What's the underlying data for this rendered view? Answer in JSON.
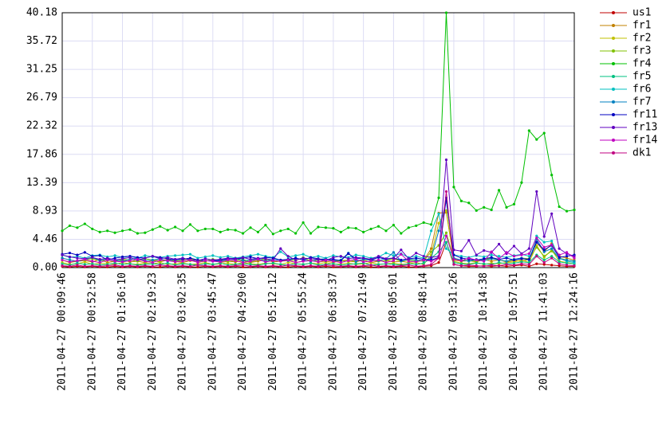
{
  "chart_data": {
    "type": "line",
    "categories": [
      "2011-04-27 00:09:46",
      null,
      null,
      null,
      "2011-04-27 00:52:58",
      null,
      null,
      null,
      "2011-04-27 01:36:10",
      null,
      null,
      null,
      "2011-04-27 02:19:23",
      null,
      null,
      null,
      "2011-04-27 03:02:35",
      null,
      null,
      null,
      "2011-04-27 03:45:47",
      null,
      null,
      null,
      "2011-04-27 04:29:00",
      null,
      null,
      null,
      "2011-04-27 05:12:12",
      null,
      null,
      null,
      "2011-04-27 05:55:24",
      null,
      null,
      null,
      "2011-04-27 06:38:37",
      null,
      null,
      null,
      "2011-04-27 07:21:49",
      null,
      null,
      null,
      "2011-04-27 08:05:01",
      null,
      null,
      null,
      "2011-04-27 08:48:14",
      null,
      null,
      null,
      "2011-04-27 09:31:26",
      null,
      null,
      null,
      "2011-04-27 10:14:38",
      null,
      null,
      null,
      "2011-04-27 10:57:51",
      null,
      null,
      null,
      "2011-04-27 11:41:03",
      null,
      null,
      null,
      "2011-04-27 12:24:16"
    ],
    "ylim": [
      0,
      40.18
    ],
    "yticks": [
      {
        "value": 0,
        "label": "0.00"
      },
      4.46,
      8.93,
      13.39,
      17.86,
      22.32,
      26.79,
      31.25,
      35.72,
      40.18
    ],
    "grid": true,
    "legend": "right",
    "series": [
      {
        "name": "us1",
        "color": "#c00000",
        "values": [
          0.2,
          0.1,
          0.2,
          0.1,
          0.2,
          0.1,
          0.1,
          0.2,
          0.1,
          0.2,
          0.1,
          0.2,
          0.1,
          0.1,
          0.2,
          0.1,
          0.2,
          0.1,
          0.1,
          0.2,
          0.1,
          0.2,
          0.1,
          0.2,
          0.1,
          0.1,
          0.2,
          0.1,
          0.2,
          0.1,
          0.1,
          0.2,
          0.1,
          0.2,
          0.1,
          0.2,
          0.1,
          0.1,
          0.2,
          0.1,
          0.2,
          0.1,
          0.1,
          0.2,
          0.1,
          0.2,
          0.1,
          0.1,
          0.2,
          0.3,
          0.8,
          4.0,
          0.5,
          0.3,
          0.2,
          0.2,
          0.3,
          0.2,
          0.3,
          0.2,
          0.3,
          0.4,
          0.2,
          0.6,
          0.5,
          0.4,
          0.3,
          0.2,
          0.2
        ]
      },
      {
        "name": "fr1",
        "color": "#c08000",
        "values": [
          1.2,
          0.8,
          1.0,
          1.1,
          0.9,
          1.3,
          0.8,
          1.0,
          1.2,
          0.9,
          1.0,
          0.8,
          1.1,
          0.9,
          1.2,
          1.0,
          0.8,
          1.1,
          0.9,
          1.0,
          1.2,
          0.8,
          1.0,
          0.9,
          1.1,
          0.8,
          1.0,
          1.2,
          0.9,
          1.0,
          1.1,
          0.8,
          1.0,
          1.2,
          0.9,
          1.0,
          0.8,
          1.1,
          1.0,
          0.9,
          1.2,
          0.8,
          1.0,
          1.1,
          0.9,
          1.0,
          0.8,
          1.0,
          1.1,
          3.0,
          8.6,
          8.7,
          1.2,
          1.0,
          1.1,
          0.9,
          1.3,
          1.0,
          1.2,
          0.9,
          1.1,
          1.0,
          1.3,
          4.0,
          2.5,
          3.8,
          1.8,
          1.5,
          1.2
        ]
      },
      {
        "name": "fr2",
        "color": "#c0c000",
        "values": [
          0.8,
          0.5,
          0.6,
          0.9,
          0.5,
          0.7,
          0.6,
          0.5,
          0.8,
          0.6,
          0.5,
          0.7,
          0.6,
          0.8,
          0.5,
          0.6,
          0.7,
          0.5,
          0.6,
          0.8,
          0.5,
          0.6,
          0.7,
          0.5,
          0.8,
          0.6,
          0.5,
          0.7,
          0.6,
          0.5,
          0.8,
          0.6,
          0.5,
          0.7,
          0.6,
          0.8,
          0.5,
          0.6,
          0.7,
          0.5,
          0.6,
          0.8,
          0.5,
          0.6,
          0.7,
          0.5,
          0.6,
          0.8,
          0.5,
          2.0,
          7.0,
          9.0,
          1.0,
          0.7,
          0.6,
          0.8,
          0.5,
          0.7,
          0.6,
          0.8,
          0.9,
          1.2,
          0.8,
          3.5,
          1.6,
          2.8,
          1.0,
          0.8,
          0.6
        ]
      },
      {
        "name": "fr3",
        "color": "#80c000",
        "values": [
          1.5,
          1.2,
          1.0,
          1.3,
          1.4,
          1.1,
          1.2,
          0.9,
          1.3,
          1.2,
          1.0,
          1.4,
          1.2,
          1.1,
          1.3,
          1.0,
          1.2,
          1.4,
          1.1,
          1.0,
          1.3,
          1.2,
          1.0,
          1.1,
          1.3,
          0.9,
          1.2,
          1.4,
          1.1,
          1.0,
          1.3,
          1.1,
          1.6,
          1.0,
          1.2,
          1.3,
          1.0,
          1.1,
          1.2,
          1.0,
          1.3,
          1.2,
          1.0,
          1.1,
          1.4,
          1.0,
          1.2,
          1.1,
          1.0,
          2.5,
          3.5,
          5.5,
          1.4,
          1.2,
          1.1,
          1.0,
          1.3,
          1.5,
          1.2,
          1.0,
          1.3,
          1.5,
          1.4,
          3.2,
          1.8,
          2.6,
          1.5,
          1.2,
          1.0
        ]
      },
      {
        "name": "fr4",
        "color": "#00c000",
        "values": [
          5.8,
          6.6,
          6.3,
          6.9,
          6.1,
          5.6,
          5.8,
          5.5,
          5.8,
          6.0,
          5.4,
          5.5,
          6.0,
          6.5,
          5.9,
          6.4,
          5.8,
          6.8,
          5.8,
          6.1,
          6.1,
          5.6,
          6.0,
          5.9,
          5.4,
          6.3,
          5.6,
          6.7,
          5.3,
          5.8,
          6.1,
          5.4,
          7.1,
          5.4,
          6.4,
          6.3,
          6.2,
          5.6,
          6.3,
          6.2,
          5.6,
          6.1,
          6.5,
          5.8,
          6.7,
          5.4,
          6.3,
          6.6,
          7.1,
          6.8,
          11.0,
          40.18,
          12.7,
          10.5,
          10.2,
          9.0,
          9.5,
          9.1,
          12.2,
          9.5,
          10.0,
          13.4,
          21.6,
          20.2,
          21.2,
          14.6,
          9.6,
          8.9,
          9.1
        ]
      },
      {
        "name": "fr5",
        "color": "#00c080",
        "values": [
          0.6,
          0.4,
          0.7,
          0.5,
          0.6,
          0.4,
          0.5,
          0.7,
          0.5,
          0.6,
          0.4,
          0.5,
          0.6,
          0.5,
          0.7,
          0.4,
          0.6,
          0.5,
          0.4,
          0.6,
          0.5,
          0.7,
          0.4,
          0.5,
          0.6,
          0.5,
          0.4,
          0.6,
          0.7,
          0.5,
          0.4,
          0.6,
          0.5,
          0.7,
          0.4,
          0.5,
          0.6,
          0.4,
          0.5,
          0.6,
          0.7,
          0.4,
          0.5,
          0.6,
          0.5,
          0.4,
          0.6,
          0.5,
          0.7,
          1.5,
          2.5,
          4.0,
          0.8,
          0.6,
          0.5,
          0.7,
          0.6,
          0.5,
          0.8,
          0.6,
          0.7,
          0.9,
          0.8,
          2.0,
          1.2,
          1.8,
          0.9,
          0.7,
          0.6
        ]
      },
      {
        "name": "fr6",
        "color": "#00c0c0",
        "values": [
          2.0,
          1.6,
          1.8,
          1.5,
          1.9,
          2.0,
          1.7,
          1.9,
          1.6,
          1.8,
          1.5,
          1.9,
          1.7,
          1.6,
          1.8,
          1.9,
          2.0,
          2.1,
          1.5,
          1.7,
          1.9,
          1.6,
          1.8,
          1.5,
          1.7,
          1.9,
          2.1,
          1.8,
          1.6,
          2.5,
          1.7,
          1.9,
          2.1,
          1.6,
          1.8,
          1.5,
          1.9,
          1.7,
          1.6,
          2.0,
          1.8,
          1.5,
          1.7,
          2.3,
          1.9,
          2.2,
          1.6,
          1.8,
          1.5,
          5.8,
          8.5,
          3.0,
          2.0,
          1.8,
          1.6,
          1.9,
          1.7,
          2.0,
          1.8,
          1.6,
          1.9,
          2.1,
          1.8,
          5.0,
          4.0,
          4.2,
          1.5,
          1.0,
          0.8
        ]
      },
      {
        "name": "fr7",
        "color": "#0080c0",
        "values": [
          1.5,
          1.2,
          1.0,
          1.3,
          1.6,
          1.1,
          1.4,
          1.2,
          1.0,
          1.3,
          1.5,
          1.1,
          1.2,
          1.4,
          1.0,
          1.3,
          1.5,
          1.2,
          1.1,
          1.4,
          1.2,
          1.0,
          1.3,
          1.5,
          1.1,
          1.2,
          1.4,
          1.0,
          1.3,
          1.2,
          1.1,
          1.5,
          1.2,
          1.0,
          1.3,
          1.4,
          1.1,
          1.2,
          2.3,
          1.0,
          1.3,
          1.2,
          1.1,
          1.4,
          2.4,
          1.0,
          1.3,
          1.2,
          1.1,
          1.5,
          5.8,
          10.5,
          1.5,
          1.2,
          1.0,
          1.3,
          1.1,
          1.4,
          1.2,
          1.0,
          1.3,
          1.5,
          1.2,
          4.5,
          2.5,
          3.0,
          1.4,
          1.2,
          1.0
        ]
      },
      {
        "name": "fr11",
        "color": "#0000c0",
        "values": [
          2.1,
          2.3,
          2.0,
          2.4,
          1.8,
          1.9,
          1.2,
          1.5,
          1.7,
          1.8,
          1.6,
          1.5,
          1.8,
          1.6,
          1.4,
          1.2,
          1.3,
          1.5,
          1.2,
          1.1,
          1.0,
          1.2,
          1.4,
          1.3,
          1.5,
          1.7,
          1.4,
          1.6,
          1.5,
          1.2,
          1.3,
          1.5,
          1.2,
          1.6,
          1.4,
          1.2,
          1.3,
          1.1,
          2.2,
          1.4,
          1.5,
          1.2,
          1.6,
          1.3,
          1.5,
          1.2,
          1.4,
          1.5,
          1.3,
          1.2,
          1.6,
          11.0,
          2.0,
          1.5,
          1.3,
          1.2,
          1.4,
          1.6,
          1.3,
          1.5,
          1.2,
          1.4,
          1.3,
          4.0,
          2.8,
          3.5,
          1.6,
          1.8,
          2.0
        ]
      },
      {
        "name": "fr13",
        "color": "#6000c0",
        "values": [
          2.0,
          1.7,
          1.5,
          1.4,
          1.6,
          1.3,
          1.5,
          1.2,
          1.4,
          1.6,
          1.2,
          1.5,
          1.8,
          1.4,
          1.6,
          1.3,
          1.5,
          1.2,
          1.1,
          1.4,
          1.2,
          1.3,
          1.5,
          1.4,
          1.6,
          1.3,
          1.5,
          1.4,
          1.2,
          3.0,
          1.8,
          1.2,
          1.5,
          1.4,
          1.3,
          1.1,
          1.6,
          1.8,
          1.4,
          1.6,
          1.5,
          1.3,
          1.8,
          1.4,
          1.5,
          2.8,
          1.4,
          2.3,
          1.8,
          1.6,
          1.8,
          17.0,
          2.8,
          2.6,
          4.3,
          2.0,
          2.7,
          2.4,
          3.7,
          2.2,
          3.4,
          2.2,
          3.0,
          12.0,
          4.9,
          8.5,
          3.0,
          2.2,
          1.8
        ]
      },
      {
        "name": "fr14",
        "color": "#c000c0",
        "values": [
          1.2,
          0.9,
          1.1,
          1.3,
          1.0,
          0.8,
          1.2,
          1.0,
          0.9,
          1.1,
          1.3,
          1.0,
          0.8,
          1.2,
          1.1,
          0.9,
          1.0,
          1.2,
          0.8,
          1.1,
          1.0,
          0.9,
          1.2,
          1.1,
          0.8,
          1.0,
          1.3,
          0.9,
          1.1,
          1.0,
          1.2,
          0.8,
          1.0,
          1.1,
          0.9,
          1.2,
          1.0,
          0.8,
          1.1,
          1.3,
          0.9,
          1.0,
          1.2,
          0.8,
          1.1,
          2.1,
          1.0,
          0.9,
          1.2,
          1.0,
          1.5,
          5.0,
          1.3,
          1.1,
          1.5,
          1.2,
          1.0,
          2.5,
          1.4,
          2.4,
          1.8,
          2.0,
          2.2,
          4.7,
          3.2,
          3.6,
          2.0,
          2.4,
          1.5
        ]
      },
      {
        "name": "dk1",
        "color": "#c00080",
        "values": [
          0.3,
          0.2,
          0.4,
          0.2,
          0.3,
          0.2,
          0.3,
          0.4,
          0.2,
          0.3,
          0.2,
          0.3,
          0.2,
          0.4,
          0.3,
          0.2,
          0.3,
          0.2,
          0.4,
          0.3,
          0.2,
          0.3,
          0.2,
          0.3,
          0.4,
          0.2,
          0.3,
          0.2,
          0.3,
          0.2,
          0.4,
          0.3,
          0.2,
          0.3,
          0.2,
          0.4,
          0.3,
          0.2,
          0.3,
          0.2,
          0.3,
          0.4,
          0.2,
          0.3,
          0.2,
          0.3,
          0.4,
          0.2,
          0.3,
          0.5,
          1.5,
          12.0,
          0.5,
          0.3,
          0.4,
          0.3,
          0.2,
          0.4,
          0.3,
          0.5,
          0.4,
          0.6,
          0.5,
          1.8,
          0.8,
          1.5,
          0.6,
          0.4,
          0.3
        ]
      }
    ]
  }
}
